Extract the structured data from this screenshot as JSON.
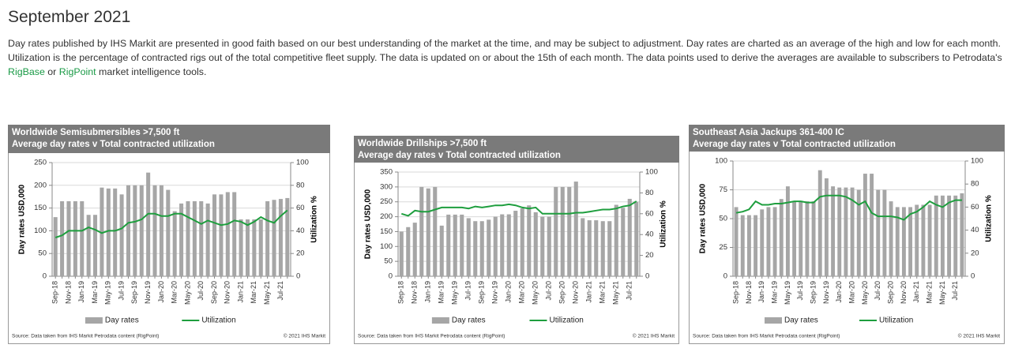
{
  "page": {
    "title": "September 2021",
    "intro": [
      "Day rates published by IHS Markit are presented in good faith based on our best understanding of the market at the time, and may be subject to adjustment. Day rates are charted as an average of the high and low for each month. Utilization is the percentage of contracted rigs out of the total competitive fleet supply. The data is updated on or about the 15th of each month. The data points used to derive the averages are available to subscribers to Petrodata's ",
      "RigBase",
      " or ",
      "RigPoint",
      " market intelligence tools."
    ]
  },
  "chart_data": [
    {
      "type": "combo",
      "title": "Worldwide Semisubmersibles >7,500 ft",
      "subtitle": "Average day rates v Total contracted utilization",
      "ylabel": "Day rates USD,000",
      "y2label": "Utilization %",
      "source": "Source: Data taken from IHS Markit Petrodata content (RigPoint)",
      "copyright": "© 2021 IHS Markit",
      "categories": [
        "Sep-18",
        null,
        "Nov-18",
        null,
        "Jan-19",
        null,
        "Mar-19",
        null,
        "May-19",
        null,
        "Jul-19",
        null,
        "Sep-19",
        null,
        "Nov-19",
        null,
        "Jan-20",
        null,
        "Mar-20",
        null,
        "May-20",
        null,
        "Jul-20",
        null,
        "Sep-20",
        null,
        "Nov-20",
        null,
        "Jan-21",
        null,
        "Mar-21",
        null,
        "May-21",
        null,
        "Jul-21",
        null
      ],
      "ylim": [
        0,
        250
      ],
      "yticks": [
        0,
        50,
        100,
        150,
        200,
        250
      ],
      "y2lim": [
        0,
        100
      ],
      "y2ticks": [
        0,
        20,
        40,
        60,
        80,
        100
      ],
      "grid": true,
      "series": [
        {
          "name": "Day rates",
          "color": "#a6a6a6",
          "values": [
            130,
            165,
            165,
            165,
            165,
            135,
            135,
            195,
            193,
            193,
            180,
            200,
            200,
            200,
            228,
            200,
            200,
            190,
            143,
            160,
            165,
            165,
            165,
            160,
            180,
            180,
            185,
            185,
            125,
            125,
            125,
            125,
            165,
            168,
            170,
            172
          ]
        },
        {
          "name": "Utilization",
          "color": "#1e9e3e",
          "axis": "y2",
          "values": [
            34,
            36,
            40,
            40,
            40,
            43,
            41,
            38,
            40,
            40,
            42,
            47,
            48,
            50,
            55,
            55,
            53,
            53,
            55,
            55,
            52,
            49,
            46,
            49,
            47,
            45,
            46,
            49,
            48,
            45,
            48,
            52,
            49,
            47,
            53,
            58
          ]
        }
      ]
    },
    {
      "type": "combo",
      "title": "Worldwide Drillships >7,500 ft",
      "subtitle": "Average day rates v Total contracted utilization",
      "ylabel": "Day rates USD,000",
      "y2label": "Utilization %",
      "source": "Source: Data taken from IHS Markit Petrodata content (RigPoint)",
      "copyright": "© 2021 IHS Markit",
      "categories": [
        "Sep-18",
        null,
        "Nov-18",
        null,
        "Jan-19",
        null,
        "Mar-19",
        null,
        "May-19",
        null,
        "Jul-19",
        null,
        "Sep-19",
        null,
        "Nov-19",
        null,
        "Jan-20",
        null,
        "Mar-20",
        null,
        "May-20",
        null,
        "Jul-20",
        null,
        "Sep-20",
        null,
        "Nov-20",
        null,
        "Jan-21",
        null,
        "Mar-21",
        null,
        "May-21",
        null,
        "Jul-21",
        null
      ],
      "ylim": [
        0,
        350
      ],
      "yticks": [
        0,
        50,
        100,
        150,
        200,
        250,
        300,
        350
      ],
      "y2lim": [
        0,
        100
      ],
      "y2ticks": [
        0,
        20,
        40,
        60,
        80,
        100
      ],
      "grid": true,
      "series": [
        {
          "name": "Day rates",
          "color": "#a6a6a6",
          "values": [
            150,
            165,
            180,
            300,
            295,
            300,
            170,
            207,
            207,
            207,
            195,
            185,
            185,
            190,
            200,
            208,
            208,
            220,
            228,
            238,
            215,
            200,
            200,
            300,
            300,
            300,
            318,
            195,
            188,
            188,
            185,
            185,
            240,
            230,
            260,
            250
          ]
        },
        {
          "name": "Utilization",
          "color": "#1e9e3e",
          "axis": "y2",
          "values": [
            60,
            58,
            63,
            62,
            62,
            64,
            66,
            66,
            66,
            66,
            65,
            67,
            66,
            67,
            68,
            68,
            69,
            68,
            66,
            65,
            66,
            60,
            60,
            60,
            60,
            60,
            61,
            61,
            62,
            63,
            64,
            64,
            65,
            67,
            68,
            72
          ]
        }
      ]
    },
    {
      "type": "combo",
      "title": "Southeast Asia Jackups 361-400 IC",
      "subtitle": "Average day rates v Total contracted utilization",
      "ylabel": "Day rates USD,000",
      "y2label": "Utilization %",
      "source": "Source: Data taken from IHS Markit Petrodata content (RigPoint)",
      "copyright": "© 2021 IHS Markit",
      "categories": [
        "Sep-18",
        null,
        "Nov-18",
        null,
        "Jan-19",
        null,
        "Mar-19",
        null,
        "May-19",
        null,
        "Jul-19",
        null,
        "Sep-19",
        null,
        "Nov-19",
        null,
        "Jan-20",
        null,
        "Mar-20",
        null,
        "May-20",
        null,
        "Jul-20",
        null,
        "Sep-20",
        null,
        "Nov-20",
        null,
        "Jan-21",
        null,
        "Mar-21",
        null,
        "May-21",
        null,
        "Jul-21",
        null
      ],
      "ylim": [
        0,
        100
      ],
      "yticks": [
        0,
        25,
        50,
        75,
        100
      ],
      "y2lim": [
        0,
        100
      ],
      "y2ticks": [
        0,
        20,
        40,
        60,
        80,
        100
      ],
      "grid": true,
      "series": [
        {
          "name": "Day rates",
          "color": "#a6a6a6",
          "values": [
            60,
            53,
            53,
            53,
            58,
            60,
            60,
            67,
            78,
            65,
            65,
            65,
            65,
            92,
            85,
            78,
            77,
            77,
            77,
            75,
            89,
            89,
            75,
            75,
            65,
            60,
            60,
            60,
            62,
            62,
            62,
            70,
            70,
            70,
            70,
            72
          ]
        },
        {
          "name": "Utilization",
          "color": "#1e9e3e",
          "axis": "y2",
          "values": [
            55,
            56,
            58,
            65,
            62,
            62,
            63,
            63,
            64,
            65,
            65,
            64,
            64,
            69,
            70,
            70,
            70,
            69,
            66,
            62,
            65,
            55,
            52,
            52,
            52,
            51,
            49,
            54,
            56,
            60,
            65,
            62,
            60,
            64,
            66,
            66
          ]
        }
      ]
    }
  ]
}
